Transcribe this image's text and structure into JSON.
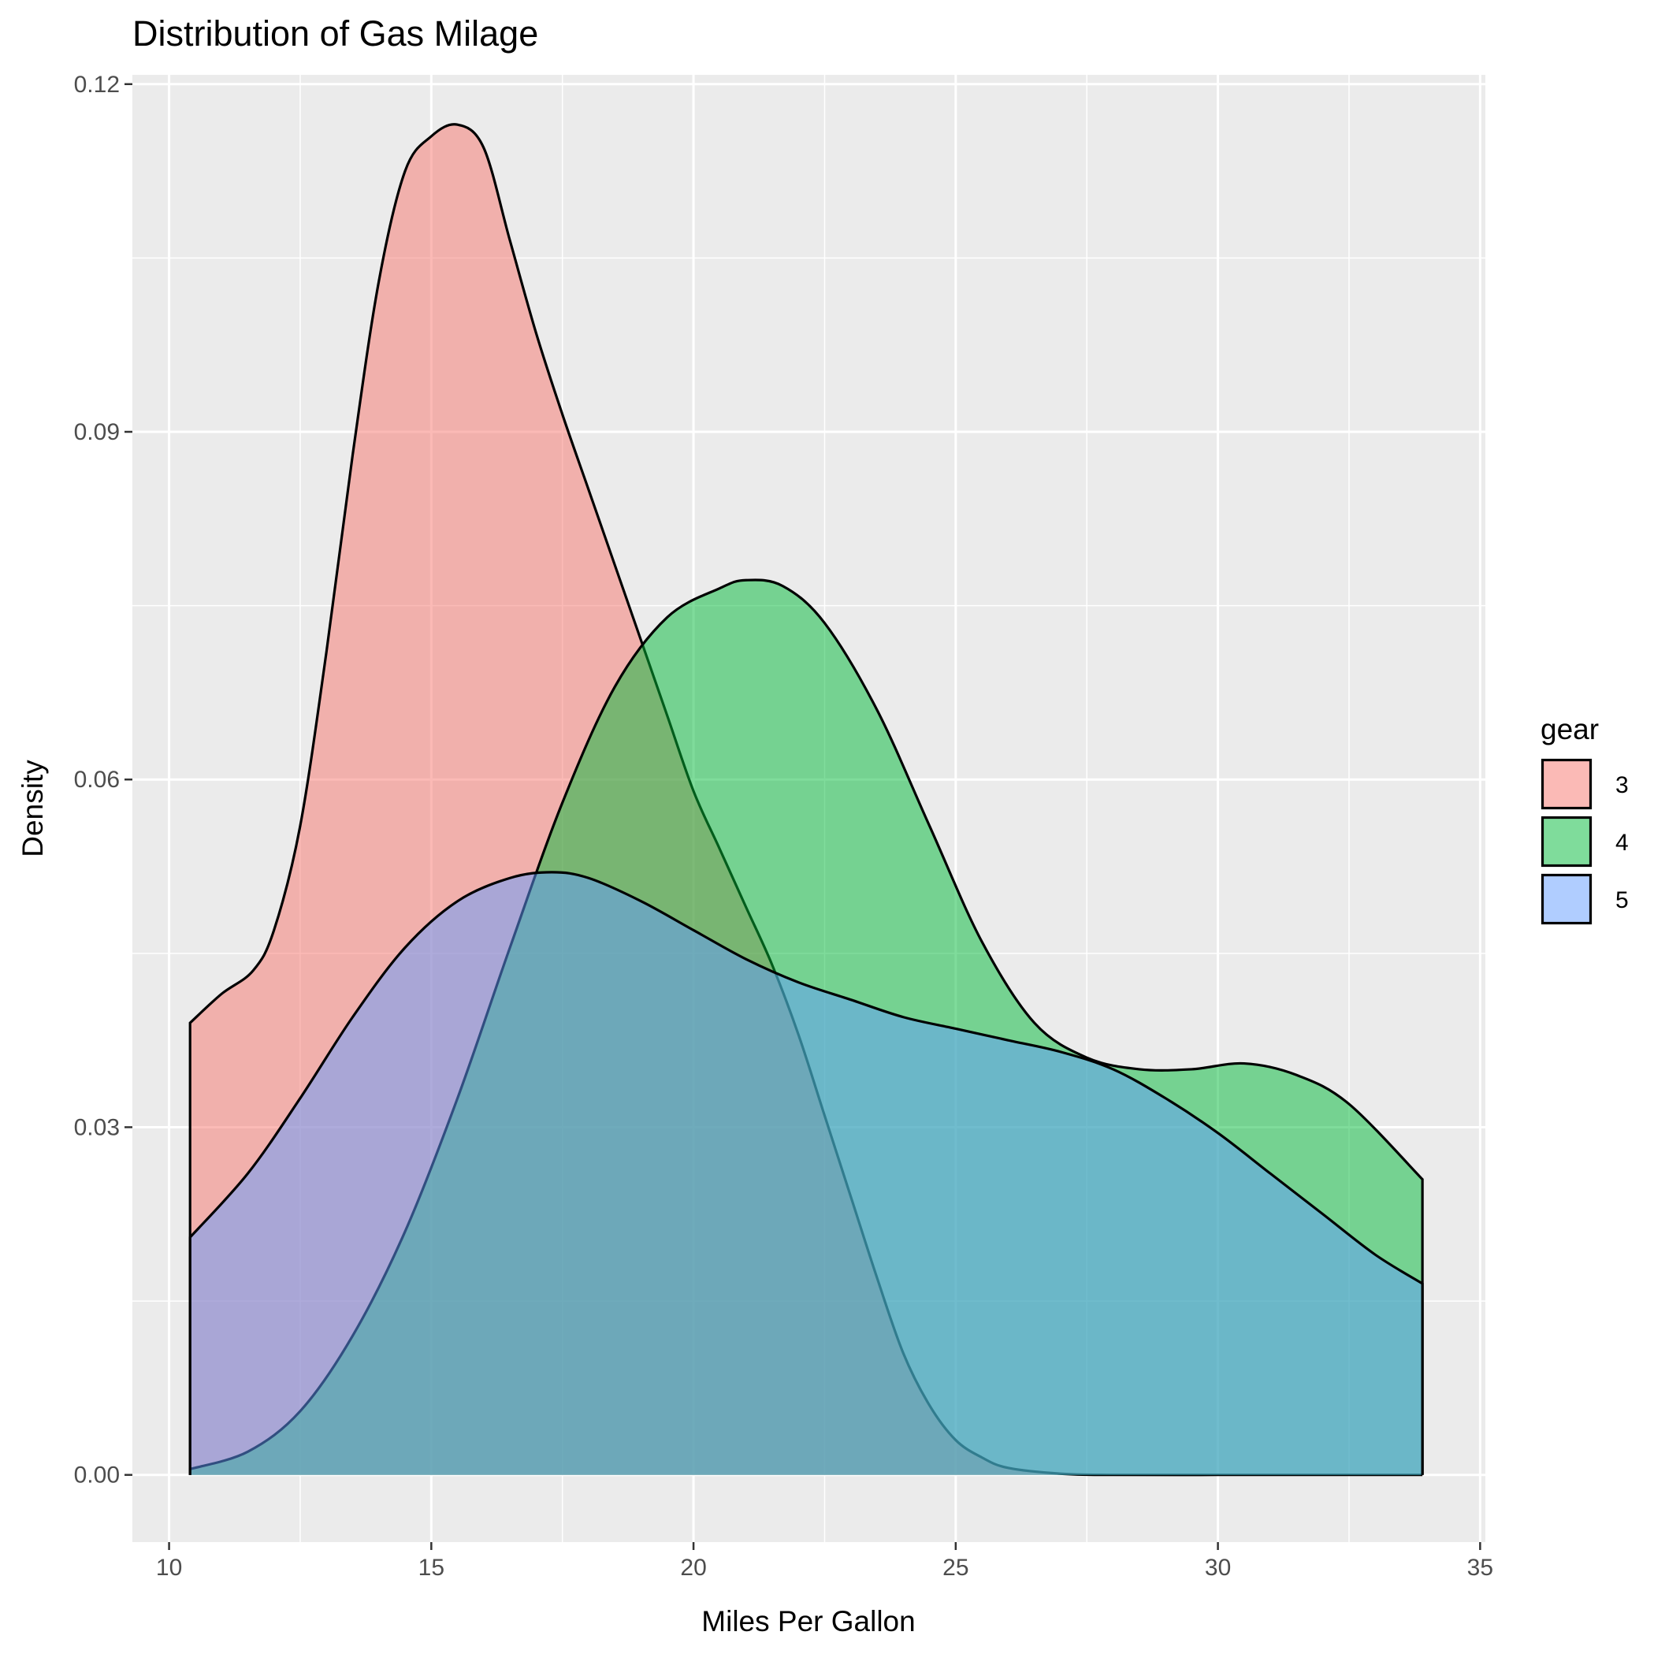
{
  "chart_data": {
    "type": "area",
    "title": "Distribution of Gas Milage",
    "xlabel": "Miles Per Gallon",
    "ylabel": "Density",
    "xlim": [
      9.3,
      35.1
    ],
    "ylim": [
      -0.0058,
      0.1208
    ],
    "xticks": [
      10,
      15,
      20,
      25,
      30,
      35
    ],
    "xtick_labels": [
      "10",
      "15",
      "20",
      "25",
      "30",
      "35"
    ],
    "yticks": [
      0.0,
      0.03,
      0.06,
      0.09,
      0.12
    ],
    "ytick_labels": [
      "0.00",
      "0.03",
      "0.06",
      "0.09",
      "0.12"
    ],
    "grid": true,
    "legend": {
      "title": "gear",
      "placement": "right"
    },
    "series": [
      {
        "name": "3",
        "color": "#F8766D",
        "x": [
          10.4,
          11.0,
          11.6,
          12.0,
          12.5,
          13.0,
          13.5,
          14.0,
          14.5,
          15.0,
          15.5,
          16.0,
          16.5,
          17.0,
          17.5,
          18.0,
          18.5,
          19.0,
          19.5,
          20.0,
          20.5,
          21.0,
          21.5,
          22.0,
          22.5,
          23.0,
          23.5,
          24.0,
          24.5,
          25.0,
          25.5,
          26.0,
          27.0,
          28.0,
          30.0,
          32.0,
          33.9
        ],
        "y": [
          0.039,
          0.0415,
          0.0435,
          0.047,
          0.056,
          0.071,
          0.088,
          0.103,
          0.1125,
          0.1155,
          0.1165,
          0.1145,
          0.1065,
          0.0985,
          0.0915,
          0.085,
          0.0785,
          0.072,
          0.0655,
          0.059,
          0.054,
          0.049,
          0.044,
          0.038,
          0.031,
          0.024,
          0.017,
          0.0105,
          0.006,
          0.003,
          0.0015,
          0.0006,
          0.0001,
          0.0,
          0.0,
          0.0,
          0.0
        ]
      },
      {
        "name": "4",
        "color": "#00BA38",
        "x": [
          10.4,
          11.5,
          12.5,
          13.5,
          14.5,
          15.5,
          16.5,
          17.5,
          18.5,
          19.5,
          20.5,
          21.0,
          21.7,
          22.5,
          23.5,
          24.5,
          25.5,
          26.5,
          27.5,
          28.5,
          29.5,
          30.5,
          31.5,
          32.5,
          33.9
        ],
        "y": [
          0.0005,
          0.002,
          0.0055,
          0.012,
          0.021,
          0.0325,
          0.0455,
          0.058,
          0.068,
          0.074,
          0.0765,
          0.0772,
          0.0767,
          0.0735,
          0.066,
          0.056,
          0.046,
          0.039,
          0.036,
          0.035,
          0.035,
          0.0355,
          0.0345,
          0.032,
          0.0255
        ]
      },
      {
        "name": "5",
        "color": "#619CFF",
        "x": [
          10.4,
          11.5,
          12.5,
          13.5,
          14.5,
          15.5,
          16.5,
          17.3,
          18.0,
          19.0,
          20.0,
          21.0,
          22.0,
          23.0,
          24.0,
          25.0,
          26.0,
          27.0,
          28.0,
          29.0,
          30.0,
          31.0,
          32.0,
          33.0,
          33.9
        ],
        "y": [
          0.0205,
          0.026,
          0.0325,
          0.0395,
          0.0455,
          0.0495,
          0.0515,
          0.052,
          0.0515,
          0.0495,
          0.047,
          0.0445,
          0.0425,
          0.041,
          0.0395,
          0.0385,
          0.0375,
          0.0365,
          0.035,
          0.0325,
          0.0295,
          0.026,
          0.0225,
          0.019,
          0.0165
        ]
      }
    ]
  }
}
